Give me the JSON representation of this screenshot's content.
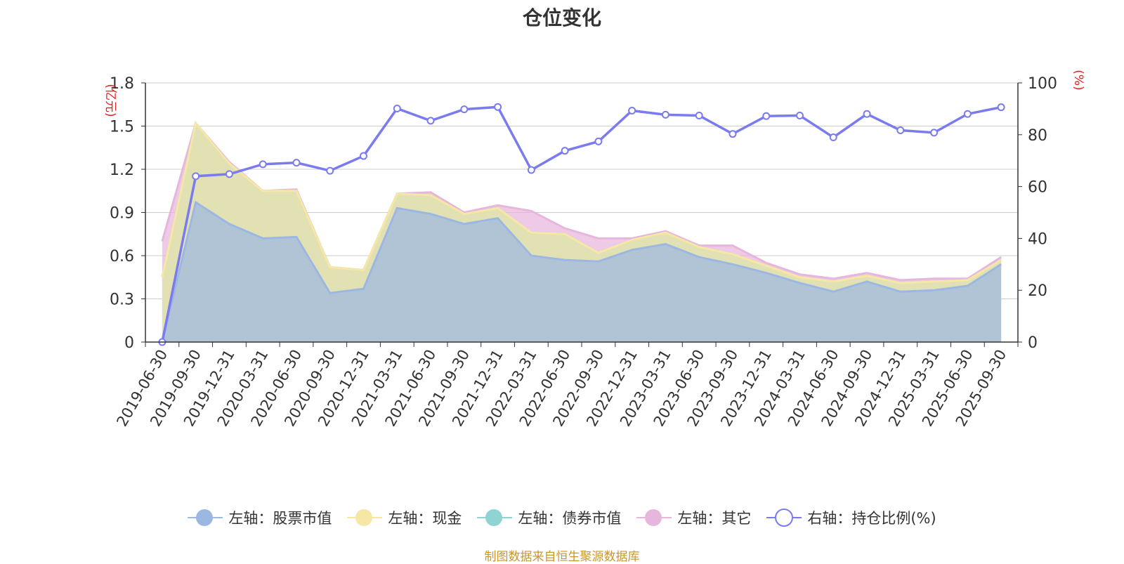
{
  "chart_data": {
    "type": "area",
    "title": "仓位变化",
    "left_axis": {
      "unit": "(亿元)",
      "ylim": [
        0,
        1.8
      ],
      "ticks": [
        "0",
        "0.3",
        "0.6",
        "0.9",
        "1.2",
        "1.5",
        "1.8"
      ]
    },
    "right_axis": {
      "unit": "(%)",
      "ylim": [
        0,
        100
      ],
      "ticks": [
        "0",
        "20",
        "40",
        "60",
        "80",
        "100"
      ]
    },
    "categories": [
      "2019-06-30",
      "2019-09-30",
      "2019-12-31",
      "2020-03-31",
      "2020-06-30",
      "2020-09-30",
      "2020-12-31",
      "2021-03-31",
      "2021-06-30",
      "2021-09-30",
      "2021-12-31",
      "2022-03-31",
      "2022-06-30",
      "2022-09-30",
      "2022-12-31",
      "2023-03-31",
      "2023-06-30",
      "2023-09-30",
      "2023-12-31",
      "2024-03-31",
      "2024-06-30",
      "2024-09-30",
      "2024-12-31",
      "2025-03-31",
      "2025-06-30",
      "2025-09-30"
    ],
    "series": [
      {
        "name": "左轴：股票市值",
        "axis": "left",
        "color": "#9cb8e2",
        "values": [
          0,
          0.97,
          0.82,
          0.72,
          0.73,
          0.34,
          0.37,
          0.93,
          0.89,
          0.82,
          0.86,
          0.6,
          0.57,
          0.56,
          0.64,
          0.68,
          0.59,
          0.54,
          0.48,
          0.41,
          0.35,
          0.42,
          0.35,
          0.36,
          0.39,
          0.54
        ]
      },
      {
        "name": "左轴：现金",
        "axis": "left",
        "color": "#f7e7a6",
        "values": [
          0.45,
          0.55,
          0.42,
          0.33,
          0.32,
          0.18,
          0.13,
          0.1,
          0.13,
          0.07,
          0.07,
          0.16,
          0.18,
          0.06,
          0.07,
          0.08,
          0.07,
          0.07,
          0.05,
          0.04,
          0.07,
          0.04,
          0.06,
          0.06,
          0.04,
          0.03
        ]
      },
      {
        "name": "左轴：债券市值",
        "axis": "left",
        "color": "#8fd3d3",
        "values": [
          0,
          0,
          0,
          0,
          0,
          0,
          0,
          0,
          0,
          0,
          0,
          0,
          0,
          0,
          0,
          0,
          0,
          0,
          0,
          0,
          0,
          0,
          0,
          0,
          0,
          0
        ]
      },
      {
        "name": "左轴：其它",
        "axis": "left",
        "color": "#e7b6dc",
        "values": [
          0.25,
          0,
          0.01,
          0,
          0.01,
          0,
          0,
          0,
          0.02,
          0.01,
          0.02,
          0.15,
          0.04,
          0.1,
          0.01,
          0.01,
          0.01,
          0.06,
          0.02,
          0.02,
          0.02,
          0.02,
          0.02,
          0.02,
          0.01,
          0.02
        ]
      },
      {
        "name": "右轴：持仓比例(%)",
        "axis": "right",
        "color": "#7b7bf0",
        "values": [
          0,
          64,
          64.8,
          68.6,
          69.2,
          66.1,
          71.8,
          90.1,
          85.4,
          89.8,
          90.7,
          66.4,
          73.8,
          77.4,
          89.3,
          87.7,
          87.4,
          80.3,
          87.2,
          87.4,
          79,
          88,
          81.7,
          80.8,
          88,
          90.6
        ]
      }
    ]
  },
  "legend": [
    {
      "label": "左轴：股票市值",
      "color": "#9cb8e2",
      "style": "filled"
    },
    {
      "label": "左轴：现金",
      "color": "#f7e7a6",
      "style": "filled"
    },
    {
      "label": "左轴：债券市值",
      "color": "#8fd3d3",
      "style": "filled"
    },
    {
      "label": "左轴：其它",
      "color": "#e7b6dc",
      "style": "filled"
    },
    {
      "label": "右轴：持仓比例(%)",
      "color": "#7b7bf0",
      "style": "hollow"
    }
  ],
  "footer": "制图数据来自恒生聚源数据库"
}
